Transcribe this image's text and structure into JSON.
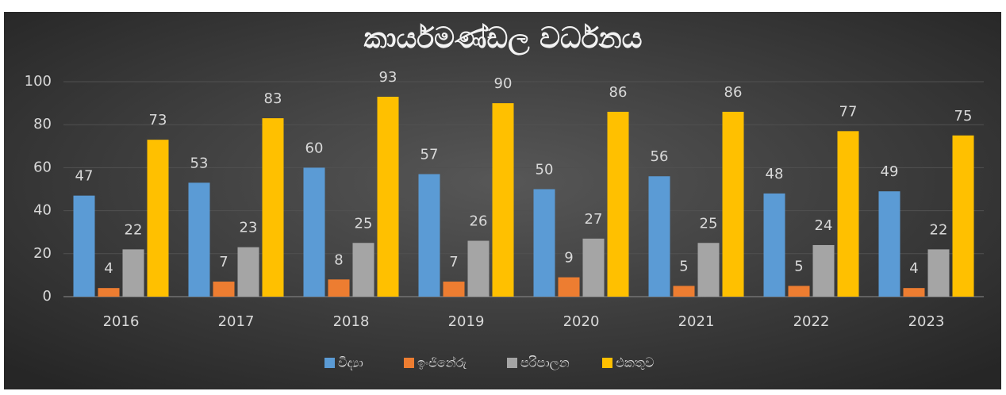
{
  "chart_data": {
    "type": "bar",
    "title": "කාර්යමණ්ඩල වර්ධනය",
    "categories": [
      "2016",
      "2017",
      "2018",
      "2019",
      "2020",
      "2021",
      "2022",
      "2023"
    ],
    "series": [
      {
        "name": "විද්‍යා",
        "color": "#5b9bd5",
        "values": [
          47,
          53,
          60,
          57,
          50,
          56,
          48,
          49
        ]
      },
      {
        "name": "ඉංජිනේරු",
        "color": "#ed7d31",
        "values": [
          4,
          7,
          8,
          7,
          9,
          5,
          5,
          4
        ]
      },
      {
        "name": "පරිපාලන",
        "color": "#a5a5a5",
        "values": [
          22,
          23,
          25,
          26,
          27,
          25,
          24,
          22
        ]
      },
      {
        "name": "එකතුව",
        "color": "#ffc000",
        "values": [
          73,
          83,
          93,
          90,
          86,
          86,
          77,
          75
        ]
      }
    ],
    "ylim": [
      0,
      100
    ],
    "yticks": [
      0,
      20,
      40,
      60,
      80,
      100
    ],
    "grid": true,
    "legend": "bottom"
  }
}
